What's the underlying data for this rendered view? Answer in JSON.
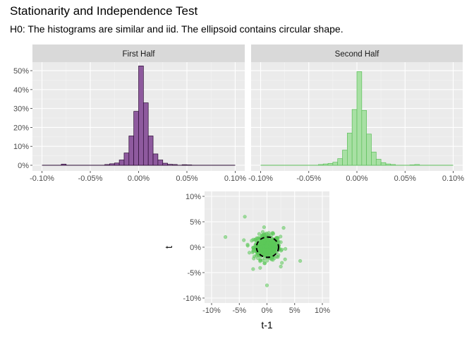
{
  "title": "Stationarity and Independence Test",
  "subtitle": "H0: The histograms are similar and iid. The ellipsoid contains circular shape.",
  "chart_data": [
    {
      "type": "bar",
      "panel": "First Half",
      "fill": "#8e5a9e",
      "stroke": "#2a0a33",
      "xlim": [
        -0.1,
        0.1
      ],
      "ylim": [
        0,
        0.5
      ],
      "x_ticks": [
        "-0.10%",
        "-0.05%",
        "0.00%",
        "0.05%",
        "0.10%"
      ],
      "y_ticks": [
        "0%",
        "10%",
        "20%",
        "30%",
        "40%",
        "50%"
      ],
      "bin_width": 0.005,
      "bin_centers": [
        -0.0775,
        -0.0325,
        -0.0275,
        -0.0225,
        -0.0175,
        -0.0125,
        -0.0075,
        -0.0025,
        0.0025,
        0.0075,
        0.0125,
        0.0175,
        0.0225,
        0.0275,
        0.0325,
        0.0375,
        0.0475,
        0.0525
      ],
      "values": [
        0.006,
        0.004,
        0.008,
        0.012,
        0.028,
        0.065,
        0.155,
        0.285,
        0.525,
        0.33,
        0.155,
        0.06,
        0.028,
        0.011,
        0.005,
        0.004,
        0.003,
        0.002
      ]
    },
    {
      "type": "bar",
      "panel": "Second Half",
      "fill": "#a8e0a4",
      "stroke": "#5cbf5a",
      "xlim": [
        -0.1,
        0.1
      ],
      "ylim": [
        0,
        0.5
      ],
      "x_ticks": [
        "-0.10%",
        "-0.05%",
        "0.00%",
        "0.05%",
        "0.10%"
      ],
      "y_ticks": [
        "0%",
        "10%",
        "20%",
        "30%",
        "40%",
        "50%"
      ],
      "bin_width": 0.005,
      "bin_centers": [
        -0.0375,
        -0.0325,
        -0.0275,
        -0.0225,
        -0.0175,
        -0.0125,
        -0.0075,
        -0.0025,
        0.0025,
        0.0075,
        0.0125,
        0.0175,
        0.0225,
        0.0275,
        0.0325,
        0.0375,
        0.0575,
        0.0625
      ],
      "values": [
        0.004,
        0.007,
        0.01,
        0.016,
        0.035,
        0.08,
        0.17,
        0.295,
        0.495,
        0.29,
        0.165,
        0.07,
        0.032,
        0.014,
        0.007,
        0.004,
        0.002,
        0.004
      ]
    },
    {
      "type": "scatter",
      "xlabel": "t-1",
      "ylabel": "t",
      "xlim": [
        -10,
        10
      ],
      "ylim": [
        -10,
        10
      ],
      "x_ticks": [
        "-10%",
        "-5%",
        "0%",
        "5%",
        "10%"
      ],
      "y_ticks": [
        "-10%",
        "-5%",
        "0%",
        "5%",
        "10%"
      ],
      "point_color": "#5cc85a",
      "ellipse_color": "#000000",
      "ellipse_radius": 2.0,
      "outliers": [
        [
          -7.5,
          2
        ],
        [
          -4,
          6
        ],
        [
          0,
          -7.5
        ],
        [
          6,
          -2.7
        ],
        [
          -2.5,
          -4.3
        ],
        [
          3,
          3.8
        ],
        [
          -3.5,
          0.5
        ],
        [
          2.5,
          -3.8
        ]
      ],
      "cluster_sd": 1.2
    }
  ]
}
